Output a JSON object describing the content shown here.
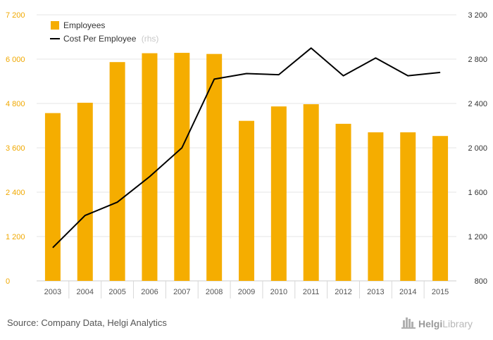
{
  "chart_data": {
    "type": "bar",
    "categories": [
      "2003",
      "2004",
      "2005",
      "2006",
      "2007",
      "2008",
      "2009",
      "2010",
      "2011",
      "2012",
      "2013",
      "2014",
      "2015"
    ],
    "series": [
      {
        "name": "Employees",
        "type": "bar",
        "axis": "left",
        "color": "#f5ad00",
        "values": [
          4540,
          4820,
          5920,
          6160,
          6170,
          6140,
          4330,
          4720,
          4780,
          4250,
          4020,
          4020,
          3920
        ]
      },
      {
        "name": "Cost Per Employee",
        "name_suffix": "(rhs)",
        "type": "line",
        "axis": "right",
        "color": "#000000",
        "values": [
          1100,
          1390,
          1510,
          1740,
          2000,
          2620,
          2670,
          2660,
          2900,
          2650,
          2810,
          2650,
          2680
        ]
      }
    ],
    "ylim_left": [
      0,
      7200
    ],
    "yticks_left": [
      "0",
      "1 200",
      "2 400",
      "3 600",
      "4 800",
      "6 000",
      "7 200"
    ],
    "ylim_right": [
      800,
      3200
    ],
    "yticks_right": [
      "800",
      "1 200",
      "1 600",
      "2 000",
      "2 400",
      "2 800",
      "3 200"
    ],
    "grid": true,
    "legend_position": "top-left",
    "source": "Source: Company Data, Helgi Analytics",
    "brand": {
      "name": "Helgi",
      "suffix": "Library"
    }
  }
}
